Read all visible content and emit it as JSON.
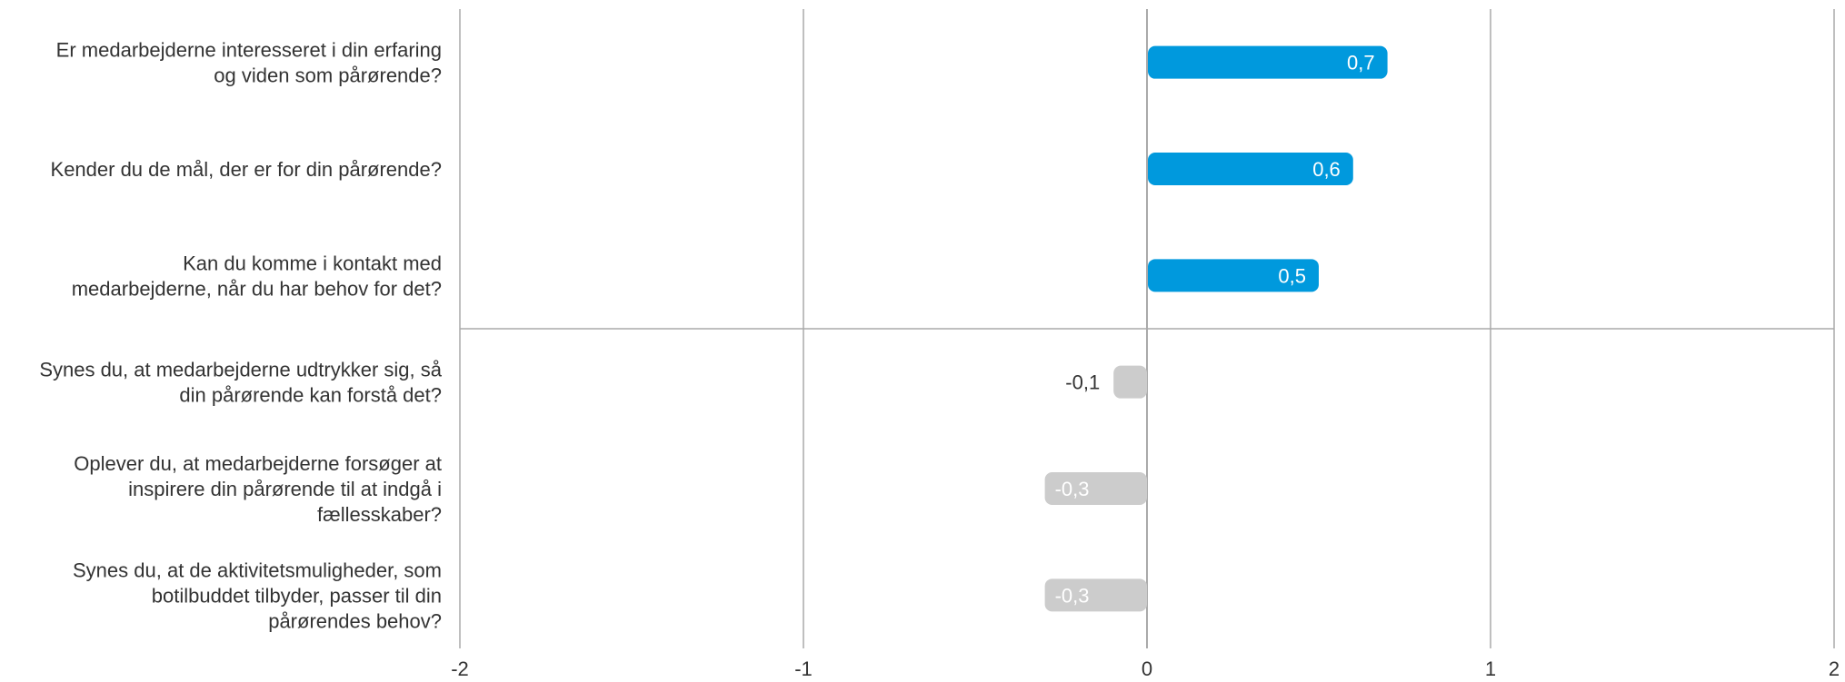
{
  "chart_data": {
    "type": "bar",
    "orientation": "horizontal",
    "categories": [
      [
        "Er medarbejderne interesseret i din erfaring",
        "og viden som pårørende?"
      ],
      [
        "Kender du de mål, der er for din pårørende?"
      ],
      [
        "Kan du komme i kontakt med",
        "medarbejderne, når du har behov for det?"
      ],
      [
        "Synes du, at medarbejderne udtrykker sig, så",
        "din pårørende kan forstå det?"
      ],
      [
        "Oplever du, at medarbejderne forsøger at",
        "inspirere din pårørende til at indgå i",
        "fællesskaber?"
      ],
      [
        "Synes du, at de aktivitetsmuligheder, som",
        "botilbuddet tilbyder, passer til din",
        "pårørendes behov?"
      ]
    ],
    "values": [
      0.7,
      0.6,
      0.5,
      -0.1,
      -0.3,
      -0.3
    ],
    "value_labels": [
      "0,7",
      "0,6",
      "0,5",
      "-0,1",
      "-0,3",
      "-0,3"
    ],
    "xlim": [
      -2,
      2
    ],
    "x_ticks": [
      -2,
      -1,
      0,
      1,
      2
    ],
    "x_tick_labels": [
      "-2",
      "-1",
      "0",
      "1",
      "2"
    ],
    "grid": true,
    "colors": {
      "positive": "#0099dd",
      "negative": "#cccccc",
      "positive_label": "#ffffff",
      "negative_label_outside": "#333333",
      "negative_label_inside": "#ffffff",
      "grid": "#aaaaaa"
    }
  }
}
